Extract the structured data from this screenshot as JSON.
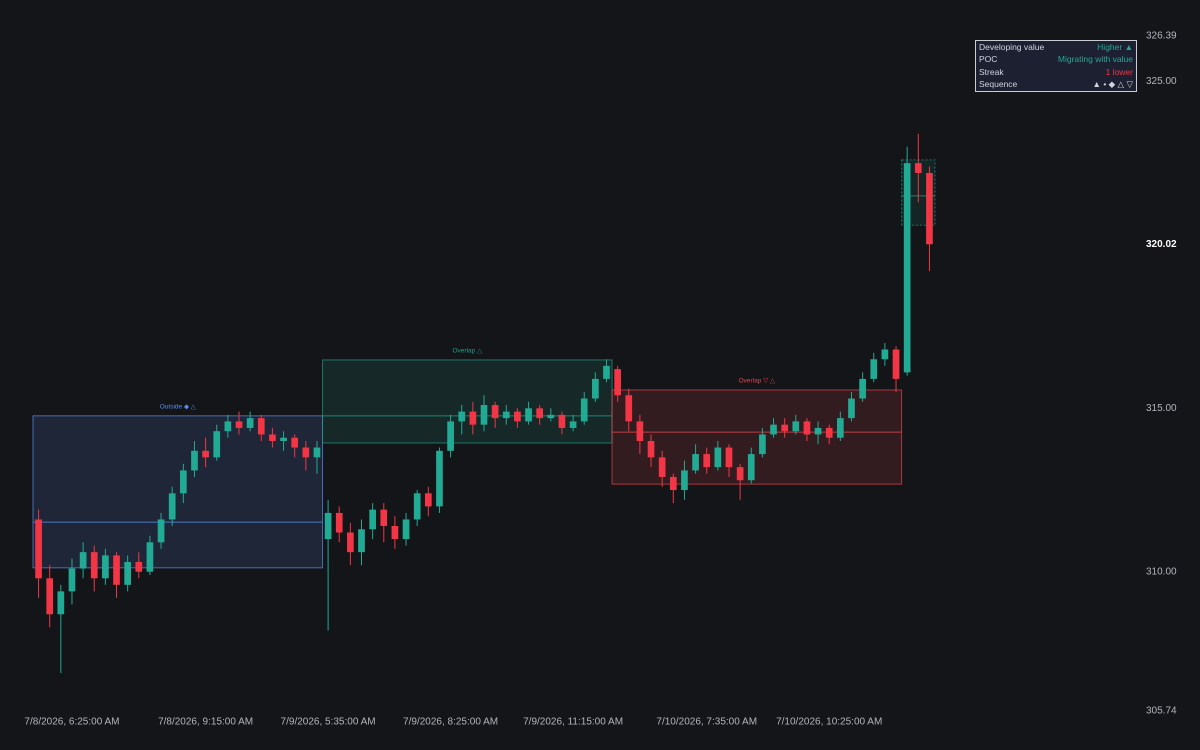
{
  "chart_data": {
    "type": "candlestick",
    "ylim": [
      305.74,
      326.39
    ],
    "yticks": [
      {
        "value": 305.74,
        "label": "305.74"
      },
      {
        "value": 310,
        "label": "310.00"
      },
      {
        "value": 315,
        "label": "315.00"
      },
      {
        "value": 325,
        "label": "325.00"
      },
      {
        "value": 326.39,
        "label": "326.39"
      }
    ],
    "last_price": {
      "value": 320.02,
      "label": "320.02"
    },
    "xticks": [
      {
        "value": 3,
        "label": "7/8/2026, 6:25:00 AM"
      },
      {
        "value": 15,
        "label": "7/8/2026, 9:15:00 AM"
      },
      {
        "value": 26,
        "label": "7/9/2026, 5:35:00 AM"
      },
      {
        "value": 37,
        "label": "7/9/2026, 8:25:00 AM"
      },
      {
        "value": 48,
        "label": "7/9/2026, 11:15:00 AM"
      },
      {
        "value": 60,
        "label": "7/10/2026, 7:35:00 AM"
      },
      {
        "value": 71,
        "label": "7/10/2026, 10:25:00 AM"
      }
    ],
    "up_color": "#22ab94",
    "down_color": "#f23645",
    "open": [
      311.6,
      309.8,
      308.7,
      309.4,
      310.1,
      310.6,
      309.8,
      310.5,
      309.6,
      310.3,
      310.0,
      310.9,
      311.6,
      312.4,
      313.1,
      313.7,
      313.5,
      314.3,
      314.6,
      314.4,
      314.7,
      314.2,
      314.0,
      314.1,
      313.8,
      313.5,
      311.0,
      311.8,
      311.2,
      310.6,
      311.3,
      311.9,
      311.4,
      311.0,
      311.6,
      312.4,
      312.0,
      313.7,
      314.6,
      314.9,
      314.5,
      315.1,
      314.7,
      314.9,
      314.6,
      315.0,
      314.7,
      314.8,
      314.4,
      314.6,
      315.3,
      315.9,
      316.2,
      315.4,
      314.6,
      314.0,
      313.5,
      312.9,
      312.5,
      313.1,
      313.6,
      313.2,
      313.8,
      313.2,
      312.8,
      313.6,
      314.2,
      314.5,
      314.3,
      314.6,
      314.2,
      314.4,
      314.1,
      314.7,
      315.3,
      315.9,
      316.5,
      316.8,
      316.1,
      322.5,
      322.2
    ],
    "high": [
      311.9,
      310.2,
      309.6,
      310.4,
      310.9,
      310.8,
      310.7,
      310.6,
      310.5,
      310.6,
      311.1,
      311.8,
      312.6,
      313.3,
      314.0,
      314.1,
      314.5,
      314.8,
      314.9,
      314.9,
      314.8,
      314.4,
      314.3,
      314.2,
      314.0,
      314.0,
      312.2,
      312.0,
      311.5,
      311.6,
      312.1,
      312.1,
      311.7,
      311.8,
      312.5,
      312.6,
      313.8,
      314.8,
      315.1,
      315.2,
      315.4,
      315.2,
      315.1,
      315.0,
      315.2,
      315.1,
      315.0,
      314.9,
      314.8,
      315.5,
      316.1,
      316.5,
      316.3,
      315.6,
      314.8,
      314.2,
      313.7,
      313.0,
      313.4,
      313.9,
      313.8,
      314.0,
      313.9,
      313.3,
      313.8,
      314.4,
      314.7,
      314.7,
      314.8,
      314.7,
      314.6,
      314.5,
      314.9,
      315.5,
      316.1,
      316.7,
      317.0,
      316.9,
      323.0,
      323.4,
      322.4
    ],
    "low": [
      309.2,
      308.3,
      306.9,
      309.0,
      309.8,
      309.4,
      309.6,
      309.2,
      309.4,
      309.8,
      309.9,
      310.7,
      311.4,
      312.1,
      312.9,
      313.2,
      313.4,
      314.1,
      314.2,
      314.3,
      314.0,
      313.8,
      313.7,
      313.5,
      313.1,
      313.0,
      308.2,
      310.9,
      310.2,
      310.2,
      311.0,
      310.9,
      310.7,
      310.8,
      311.4,
      311.7,
      311.8,
      313.5,
      314.2,
      314.2,
      314.3,
      314.4,
      314.5,
      314.4,
      314.5,
      314.5,
      314.6,
      314.2,
      314.3,
      314.5,
      315.2,
      315.8,
      315.2,
      314.3,
      313.6,
      313.2,
      312.6,
      312.1,
      312.2,
      313.0,
      313.0,
      313.1,
      312.9,
      312.2,
      312.7,
      313.5,
      314.1,
      314.1,
      314.2,
      314.0,
      313.9,
      313.9,
      314.0,
      314.6,
      315.2,
      315.8,
      316.3,
      315.5,
      316.0,
      321.3,
      319.2
    ],
    "close": [
      309.8,
      308.7,
      309.4,
      310.1,
      310.6,
      309.8,
      310.5,
      309.6,
      310.3,
      310.0,
      310.9,
      311.6,
      312.4,
      313.1,
      313.7,
      313.5,
      314.3,
      314.6,
      314.4,
      314.7,
      314.2,
      314.0,
      314.1,
      313.8,
      313.5,
      313.8,
      311.8,
      311.2,
      310.6,
      311.3,
      311.9,
      311.4,
      311.0,
      311.6,
      312.4,
      312.0,
      313.7,
      314.6,
      314.9,
      314.5,
      315.1,
      314.7,
      314.9,
      314.6,
      315.0,
      314.7,
      314.8,
      314.4,
      314.6,
      315.3,
      315.9,
      316.3,
      315.4,
      314.6,
      314.0,
      313.5,
      312.9,
      312.5,
      313.1,
      313.6,
      313.2,
      313.8,
      313.2,
      312.8,
      313.6,
      314.2,
      314.5,
      314.3,
      314.6,
      314.2,
      314.4,
      314.1,
      314.7,
      315.3,
      315.9,
      316.5,
      316.8,
      315.9,
      322.5,
      322.2,
      320.02
    ],
    "sessions": [
      {
        "label": "Outside ◆ △",
        "color": "#5b8def",
        "vah": 314.77,
        "val": 310.12,
        "poc": 311.52
      },
      {
        "label": "Overlap △",
        "color": "#1f9e86",
        "vah": 316.48,
        "val": 313.94,
        "poc": 314.77
      },
      {
        "label": "Overlap ▽ △",
        "color": "#e0474f",
        "vah": 315.56,
        "val": 312.68,
        "poc": 314.27
      },
      {
        "color": "#1f9e86",
        "vah": 322.6,
        "val": 320.6,
        "poc": 321.5
      }
    ],
    "status_table": [
      {
        "label": "Developing value",
        "value": "Higher ▲",
        "color": "#22ab94"
      },
      {
        "label": "POC",
        "value": "Migrating with value",
        "color": "#22ab94"
      },
      {
        "label": "Streak",
        "value": "1 lower",
        "color": "#f23645"
      },
      {
        "label": "Sequence",
        "value": "▲ • ◆ △ ▽",
        "color": "#d1d4dc"
      }
    ]
  }
}
